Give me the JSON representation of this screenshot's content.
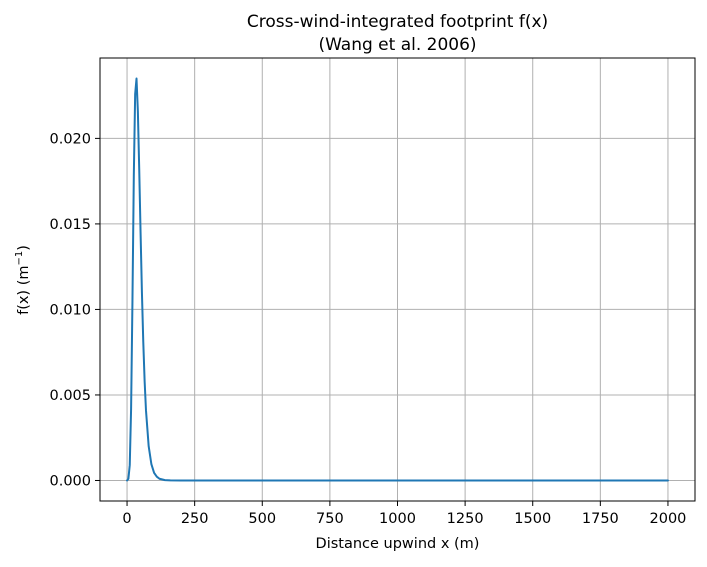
{
  "chart_data": {
    "type": "line",
    "title": "Cross-wind-integrated footprint f(x)",
    "subtitle": "(Wang et al. 2006)",
    "xlabel": "Distance upwind x (m)",
    "ylabel": "f(x) (m",
    "ylabel_superscript": "−1",
    "ylabel_suffix": ")",
    "xlim": [
      -100,
      2100
    ],
    "ylim": [
      -0.0012,
      0.0247
    ],
    "xticks": [
      0,
      250,
      500,
      750,
      1000,
      1250,
      1500,
      1750,
      2000
    ],
    "xtick_labels": [
      "0",
      "250",
      "500",
      "750",
      "1000",
      "1250",
      "1500",
      "1750",
      "2000"
    ],
    "yticks": [
      0.0,
      0.005,
      0.01,
      0.015,
      0.02
    ],
    "ytick_labels": [
      "0.000",
      "0.005",
      "0.010",
      "0.015",
      "0.020"
    ],
    "grid": true,
    "series": [
      {
        "name": "f(x)",
        "color": "#1f77b4",
        "x": [
          0,
          5,
          10,
          15,
          20,
          25,
          30,
          35,
          40,
          45,
          50,
          55,
          60,
          65,
          70,
          80,
          90,
          100,
          110,
          120,
          140,
          160,
          200,
          300,
          500,
          1000,
          1500,
          2000
        ],
        "y": [
          0,
          0.0001,
          0.0009,
          0.0042,
          0.0105,
          0.0178,
          0.0226,
          0.0235,
          0.0216,
          0.0182,
          0.0145,
          0.011,
          0.0081,
          0.0058,
          0.0041,
          0.002,
          0.00095,
          0.00045,
          0.00022,
          0.0001,
          2e-05,
          5e-06,
          0,
          0,
          0,
          0,
          0,
          0
        ]
      }
    ]
  }
}
